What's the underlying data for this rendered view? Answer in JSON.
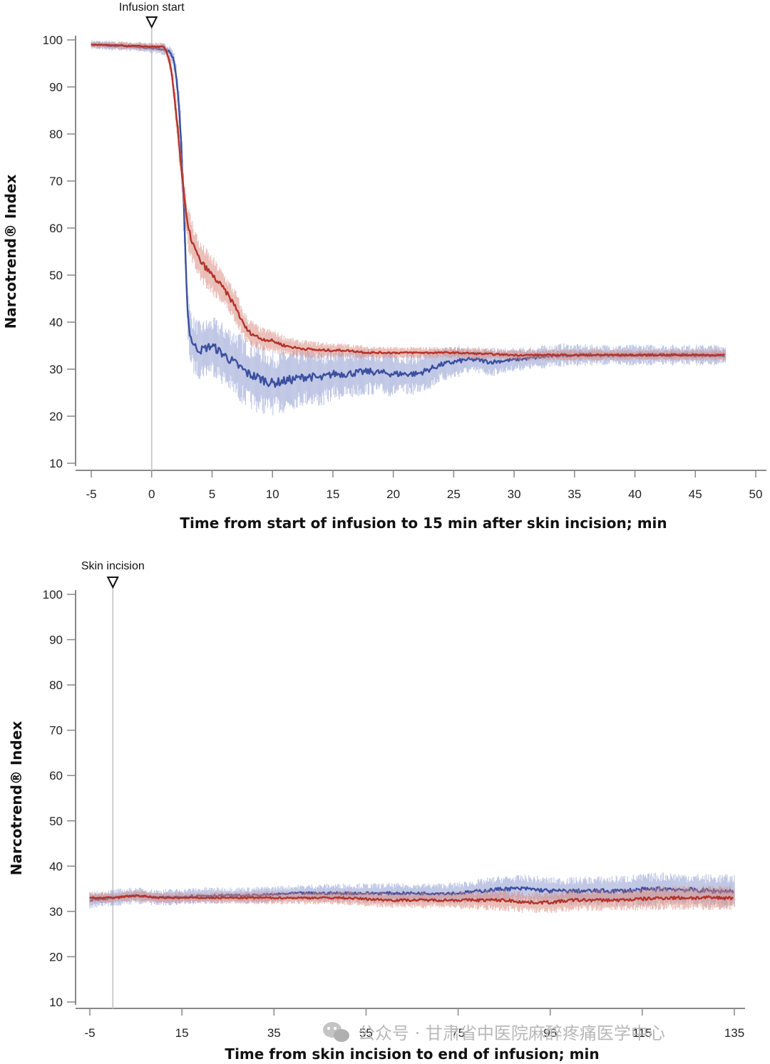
{
  "watermark": {
    "text": "公众号 · 甘肃省中医院麻醉疼痛医学中心",
    "icon": "wechat-icon"
  },
  "colors": {
    "blue": "#3b4fa0",
    "blue_band": "#8e9bd0",
    "red": "#b3332b",
    "red_band": "#d98a7e",
    "axis": "#888888",
    "marker_line": "#c8c8c8"
  },
  "chart_data": [
    {
      "type": "line",
      "ylabel": "Narcotrend® Index",
      "xlabel": "Time from start of infusion to 15 min after skin incision; min",
      "annotation": {
        "label": "Infusion start",
        "x": 0
      },
      "xlim": [
        -5,
        50
      ],
      "ylim": [
        10,
        100
      ],
      "xticks": [
        -5,
        0,
        5,
        10,
        15,
        20,
        25,
        30,
        35,
        40,
        45,
        50
      ],
      "yticks": [
        10,
        20,
        30,
        40,
        50,
        60,
        70,
        80,
        90,
        100
      ],
      "series": [
        {
          "color": "blue",
          "x": [
            -5,
            -1,
            1,
            1.5,
            1.8,
            2,
            2.2,
            2.4,
            2.6,
            2.8,
            2.9,
            3,
            3.2,
            3.5,
            4,
            5,
            6,
            7,
            8,
            9,
            10,
            11,
            12,
            13,
            14,
            15,
            16,
            18,
            20,
            22,
            23,
            24,
            25,
            26,
            27,
            28,
            30,
            32,
            34,
            36,
            38,
            40,
            42,
            45,
            47.5
          ],
          "y": [
            99,
            98.5,
            98,
            97.5,
            96,
            93,
            88,
            80,
            68,
            55,
            47,
            41,
            37,
            35,
            34,
            35,
            33,
            31,
            29,
            28,
            27,
            27.5,
            28,
            28.5,
            28,
            29,
            29,
            29.5,
            29,
            29,
            30,
            31,
            31.5,
            32,
            32,
            31.5,
            32,
            32.5,
            33,
            33,
            33,
            33,
            33,
            33,
            33
          ],
          "band": [
            0.8,
            0.8,
            1,
            1.2,
            1.5,
            2,
            3,
            4,
            5,
            5,
            5,
            5,
            5,
            5,
            5,
            5,
            5.5,
            6,
            6,
            6,
            5.5,
            5.5,
            5,
            5,
            5,
            4.5,
            4.5,
            4,
            4,
            3.5,
            3.5,
            3,
            3,
            2.5,
            2.5,
            2.5,
            2,
            2,
            2,
            1.8,
            1.8,
            1.8,
            1.8,
            1.8,
            1.8
          ]
        },
        {
          "color": "red",
          "x": [
            -5,
            1,
            1.3,
            1.6,
            1.8,
            2,
            2.2,
            2.4,
            2.6,
            2.8,
            3,
            3.5,
            4,
            5,
            6,
            7,
            7.5,
            8,
            9,
            10,
            11,
            12,
            14,
            16,
            18,
            20,
            22,
            25,
            30,
            35,
            40,
            45,
            47.5
          ],
          "y": [
            99,
            98.5,
            97,
            94,
            90,
            85,
            80,
            74,
            69,
            64,
            60,
            56,
            53,
            50,
            47,
            43,
            40,
            38,
            36.5,
            36,
            35,
            34.5,
            34,
            34,
            33.5,
            33.5,
            33.5,
            33.5,
            33,
            33,
            33,
            33,
            33
          ],
          "band": [
            0.6,
            0.8,
            1,
            1.5,
            2,
            2.5,
            3,
            3.5,
            4,
            4,
            4,
            4,
            3.5,
            3.5,
            3,
            3,
            2.5,
            2.5,
            2,
            2,
            1.8,
            1.5,
            1.5,
            1.2,
            1.2,
            1,
            1,
            1,
            1,
            1,
            1,
            1,
            1
          ]
        }
      ]
    },
    {
      "type": "line",
      "ylabel": "Narcotrend® Index",
      "xlabel": "Time from skin incision to end of infusion; min",
      "annotation": {
        "label": "Skin incision",
        "x": 0
      },
      "xlim": [
        -5,
        135
      ],
      "ylim": [
        10,
        100
      ],
      "xticks": [
        -5,
        15,
        35,
        55,
        75,
        95,
        115,
        135
      ],
      "yticks": [
        10,
        20,
        30,
        40,
        50,
        60,
        70,
        80,
        90,
        100
      ],
      "series": [
        {
          "color": "blue",
          "x": [
            -5,
            0,
            5,
            10,
            20,
            30,
            40,
            50,
            60,
            70,
            75,
            80,
            85,
            90,
            95,
            100,
            110,
            120,
            130,
            135
          ],
          "y": [
            32.5,
            33,
            33.5,
            33,
            33.5,
            33.5,
            34,
            34,
            34,
            34,
            34,
            34.5,
            35,
            35,
            34.5,
            34.5,
            34.5,
            35,
            34.5,
            34.5
          ],
          "band": [
            1.5,
            1.5,
            1.5,
            1.5,
            1.5,
            1.5,
            1.5,
            1.8,
            1.8,
            1.8,
            2,
            2.2,
            2.4,
            2.5,
            2.5,
            2.5,
            2.8,
            3,
            3,
            3
          ]
        },
        {
          "color": "red",
          "x": [
            -5,
            0,
            5,
            10,
            20,
            30,
            40,
            50,
            60,
            70,
            75,
            80,
            85,
            90,
            95,
            100,
            110,
            120,
            130,
            135
          ],
          "y": [
            33,
            33,
            33.5,
            33,
            33,
            33,
            33,
            33,
            32.5,
            32.5,
            32.5,
            32.5,
            32.5,
            32,
            32,
            32.5,
            32.5,
            33,
            33,
            33
          ],
          "band": [
            1,
            1,
            1,
            1,
            1,
            1.2,
            1.2,
            1.3,
            1.5,
            1.5,
            1.6,
            1.8,
            2,
            2,
            2,
            2,
            2,
            2.2,
            2.2,
            2.2
          ]
        }
      ]
    }
  ]
}
